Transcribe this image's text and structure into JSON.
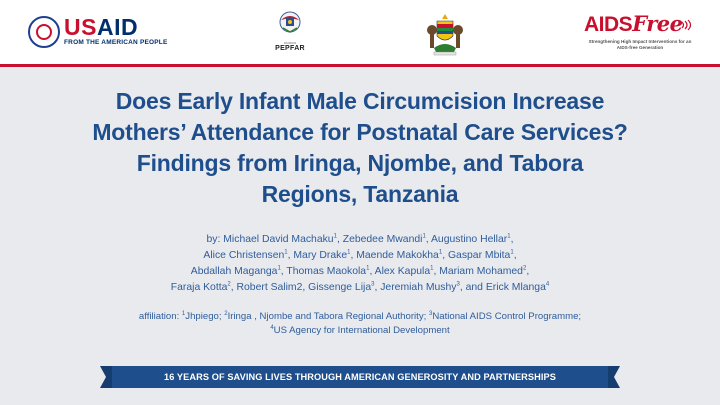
{
  "header": {
    "usaid": {
      "wordmark_u": "US",
      "wordmark_rest": "AID",
      "tagline": "FROM THE AMERICAN PEOPLE"
    },
    "pepfar": {
      "name": "PEPFAR"
    },
    "aidsfree": {
      "wordmark_aids": "AIDS",
      "wordmark_free": "Free",
      "tagline": "Strengthening High Impact Interventions for an AIDS-free Generation"
    }
  },
  "title": {
    "line1": "Does Early Infant Male Circumcision Increase",
    "line2": "Mothers’ Attendance for Postnatal Care Services?",
    "line3": "Findings from Iringa, Njombe, and Tabora",
    "line4": "Regions, Tanzania"
  },
  "authors": {
    "prefix": "by:",
    "list": [
      {
        "name": "Michael David Machaku",
        "sup": "1"
      },
      {
        "name": "Zebedee Mwandi",
        "sup": "1"
      },
      {
        "name": "Augustino Hellar",
        "sup": "1"
      },
      {
        "name": "Alice Christensen",
        "sup": "1"
      },
      {
        "name": "Mary Drake",
        "sup": "1"
      },
      {
        "name": "Maende Makokha",
        "sup": "1"
      },
      {
        "name": "Gaspar Mbita",
        "sup": "1"
      },
      {
        "name": "Abdallah Maganga",
        "sup": "1"
      },
      {
        "name": "Thomas Maokola",
        "sup": "1"
      },
      {
        "name": "Alex Kapula",
        "sup": "1"
      },
      {
        "name": "Mariam Mohamed",
        "sup": "2"
      },
      {
        "name": "Faraja Kotta",
        "sup": "2"
      },
      {
        "name": "Robert Salim2",
        "sup": ""
      },
      {
        "name": "Gissenge Lija",
        "sup": "3"
      },
      {
        "name": "Jeremiah Mushy",
        "sup": "3"
      },
      {
        "name": "Erick Mlanga",
        "sup": "4"
      }
    ]
  },
  "affiliation": {
    "prefix": "affiliation:",
    "items": [
      {
        "sup": "1",
        "text": "Jhpiego;"
      },
      {
        "sup": "2",
        "text": "Iringa , Njombe and Tabora Regional Authority;"
      },
      {
        "sup": "3",
        "text": "National AIDS Control Programme;"
      },
      {
        "sup": "4",
        "text": "US Agency for International Development"
      }
    ]
  },
  "banner": {
    "text": "16 YEARS OF SAVING LIVES THROUGH AMERICAN GENEROSITY AND PARTNERSHIPS"
  },
  "colors": {
    "title": "#1f4e8c",
    "accent_red": "#c8102e",
    "banner": "#1e4e8c",
    "background": "#e9eaee"
  }
}
